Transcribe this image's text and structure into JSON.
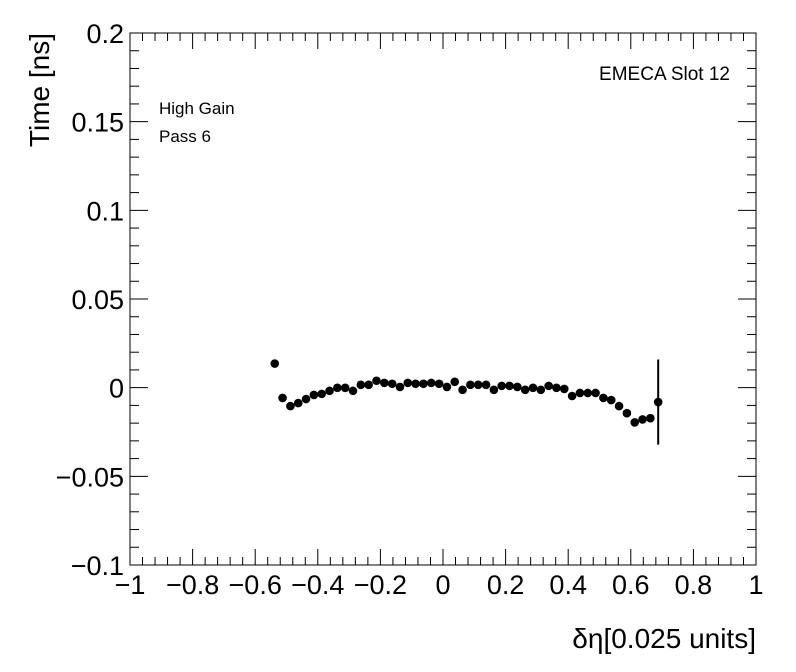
{
  "chart_data": {
    "type": "scatter",
    "xlabel": "δη[0.025 units]",
    "ylabel": "Time [ns]",
    "xlim": [
      -1,
      1
    ],
    "ylim": [
      -0.1,
      0.2
    ],
    "x_ticks": [
      -1,
      -0.8,
      -0.6,
      -0.4,
      -0.2,
      0,
      0.2,
      0.4,
      0.6,
      0.8,
      1
    ],
    "x_tick_labels": [
      "−1",
      "−0.8",
      "−0.6",
      "−0.4",
      "−0.2",
      "0",
      "0.2",
      "0.4",
      "0.6",
      "0.8",
      "1"
    ],
    "y_ticks": [
      -0.1,
      -0.05,
      0,
      0.05,
      0.1,
      0.15,
      0.2
    ],
    "y_tick_labels": [
      "−0.1",
      "−0.05",
      "0",
      "0.05",
      "0.1",
      "0.15",
      "0.2"
    ],
    "annotations": {
      "slot": "EMECA Slot 12",
      "gain": "High Gain",
      "pass": "Pass 6"
    },
    "grid": false,
    "series": [
      {
        "marker": "filled-circle",
        "color": "#000000",
        "points": [
          {
            "x": -0.5375,
            "y": 0.0136
          },
          {
            "x": -0.5125,
            "y": -0.0058
          },
          {
            "x": -0.4875,
            "y": -0.0104
          },
          {
            "x": -0.4625,
            "y": -0.0087
          },
          {
            "x": -0.4375,
            "y": -0.0064
          },
          {
            "x": -0.4125,
            "y": -0.0041
          },
          {
            "x": -0.3875,
            "y": -0.0035
          },
          {
            "x": -0.3625,
            "y": -0.0018
          },
          {
            "x": -0.3375,
            "y": -0.0001
          },
          {
            "x": -0.3125,
            "y": -0.0001
          },
          {
            "x": -0.2875,
            "y": -0.0018
          },
          {
            "x": -0.2625,
            "y": 0.0016
          },
          {
            "x": -0.2375,
            "y": 0.0016
          },
          {
            "x": -0.2125,
            "y": 0.0039
          },
          {
            "x": -0.1875,
            "y": 0.0027
          },
          {
            "x": -0.1625,
            "y": 0.0022
          },
          {
            "x": -0.1375,
            "y": 0.0004
          },
          {
            "x": -0.1125,
            "y": 0.0027
          },
          {
            "x": -0.0875,
            "y": 0.0022
          },
          {
            "x": -0.0625,
            "y": 0.0022
          },
          {
            "x": -0.0375,
            "y": 0.0027
          },
          {
            "x": -0.0125,
            "y": 0.0022
          },
          {
            "x": 0.0125,
            "y": 0.0004
          },
          {
            "x": 0.0375,
            "y": 0.0033
          },
          {
            "x": 0.0625,
            "y": -0.0012
          },
          {
            "x": 0.0875,
            "y": 0.0016
          },
          {
            "x": 0.1125,
            "y": 0.0016
          },
          {
            "x": 0.1375,
            "y": 0.0016
          },
          {
            "x": 0.1625,
            "y": -0.0012
          },
          {
            "x": 0.1875,
            "y": 0.001
          },
          {
            "x": 0.2125,
            "y": 0.001
          },
          {
            "x": 0.2375,
            "y": 0.0004
          },
          {
            "x": 0.2625,
            "y": -0.0012
          },
          {
            "x": 0.2875,
            "y": -0.0001
          },
          {
            "x": 0.3125,
            "y": -0.0012
          },
          {
            "x": 0.3375,
            "y": 0.001
          },
          {
            "x": 0.3625,
            "y": -0.0001
          },
          {
            "x": 0.3875,
            "y": -0.0007
          },
          {
            "x": 0.4125,
            "y": -0.0047
          },
          {
            "x": 0.4375,
            "y": -0.003
          },
          {
            "x": 0.4625,
            "y": -0.003
          },
          {
            "x": 0.4875,
            "y": -0.003
          },
          {
            "x": 0.5125,
            "y": -0.0058
          },
          {
            "x": 0.5375,
            "y": -0.007
          },
          {
            "x": 0.5625,
            "y": -0.0104
          },
          {
            "x": 0.5875,
            "y": -0.0144
          },
          {
            "x": 0.6125,
            "y": -0.0196
          },
          {
            "x": 0.6375,
            "y": -0.0179
          },
          {
            "x": 0.6625,
            "y": -0.0172
          },
          {
            "x": 0.6875,
            "y": -0.0081,
            "yerr": 0.024
          }
        ]
      }
    ]
  }
}
